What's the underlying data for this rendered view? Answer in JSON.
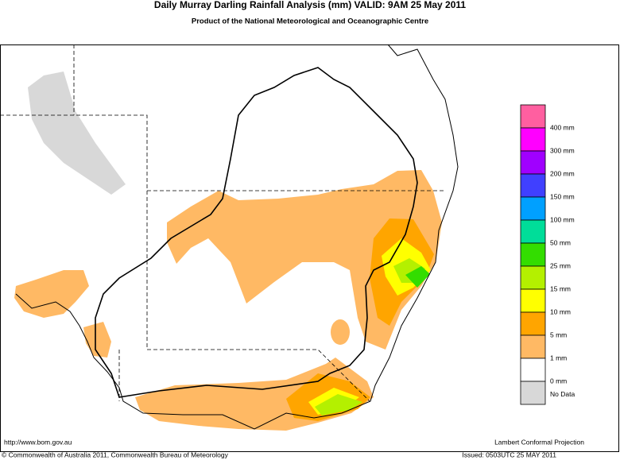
{
  "header": {
    "title": "Daily Murray Darling Rainfall Analysis (mm)  VALID: 9AM 25 May 2011",
    "subtitle": "Product of the National Meteorological and Oceanographic Centre"
  },
  "legend": {
    "items": [
      {
        "label": "400 mm",
        "color": "#ff5fa0"
      },
      {
        "label": "300 mm",
        "color": "#ff00ff"
      },
      {
        "label": "200 mm",
        "color": "#a000ff"
      },
      {
        "label": "150 mm",
        "color": "#4040ff"
      },
      {
        "label": "100 mm",
        "color": "#00a0ff"
      },
      {
        "label": "50 mm",
        "color": "#00dd99"
      },
      {
        "label": "25 mm",
        "color": "#33dd00"
      },
      {
        "label": "15 mm",
        "color": "#b4f000"
      },
      {
        "label": "10 mm",
        "color": "#ffff00"
      },
      {
        "label": "5 mm",
        "color": "#ffa500"
      },
      {
        "label": "1 mm",
        "color": "#ffb964"
      },
      {
        "label": "0 mm",
        "color": "#ffffff"
      },
      {
        "label": "No Data",
        "color": "#d8d8d8"
      }
    ]
  },
  "footer": {
    "url": "http://www.bom.gov.au",
    "projection": "Lambert Conformal Projection",
    "copyright": "© Commonwealth of Australia 2011, Commonwealth Bureau of Meteorology",
    "issued": "Issued: 0503UTC 25 MAY 2011"
  }
}
